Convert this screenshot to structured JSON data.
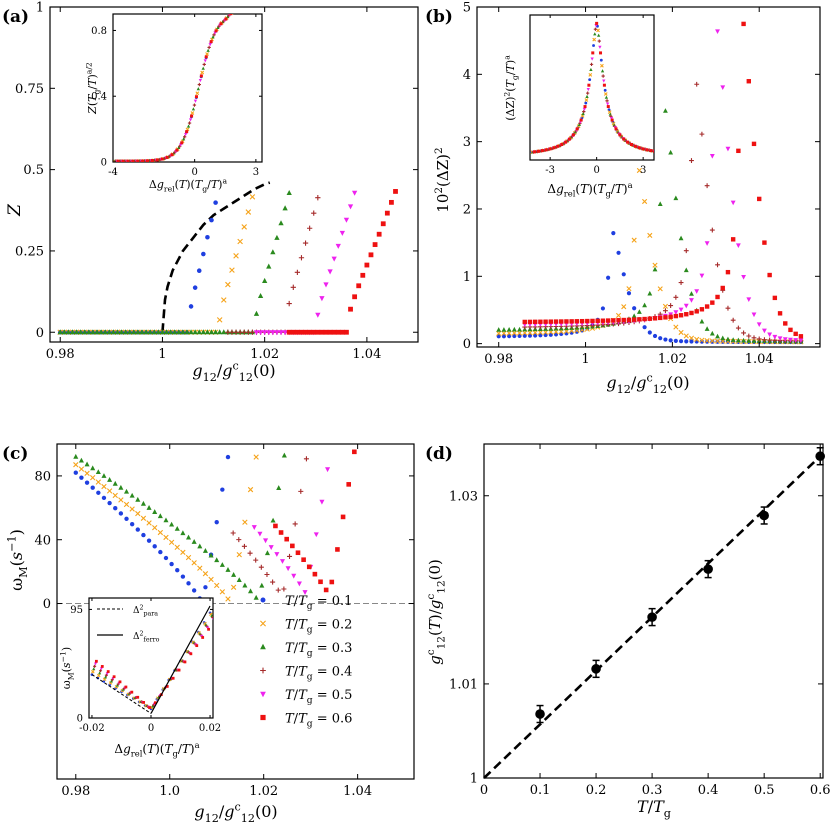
{
  "figure": {
    "panels": [
      {
        "id": "a",
        "tag": "(a)"
      },
      {
        "id": "b",
        "tag": "(b)"
      },
      {
        "id": "c",
        "tag": "(c)"
      },
      {
        "id": "d",
        "tag": "(d)"
      }
    ]
  },
  "chart_data": [
    {
      "panel": "a",
      "type": "scatter",
      "xlabel": "g12/g12^c(0)",
      "ylabel": "Z",
      "xlim": [
        0.978,
        1.05
      ],
      "ylim": [
        -0.03,
        1.0
      ],
      "xticks": [
        0.98,
        1.0,
        1.02,
        1.04
      ],
      "xticklabels": [
        "0.98",
        "1",
        "1.02",
        "1.04"
      ],
      "yticks": [
        0,
        0.25,
        0.5,
        0.75,
        1
      ],
      "yticklabels": [
        "0",
        "0.25",
        "0.5",
        "0.75",
        "1"
      ],
      "mean_field_curve": {
        "style": "dashed",
        "x": [
          1.0,
          1.0005,
          1.001,
          1.002,
          1.004,
          1.006,
          1.008,
          1.01,
          1.012,
          1.014,
          1.016,
          1.018,
          1.02,
          1.021
        ],
        "y": [
          0.0,
          0.1,
          0.14,
          0.19,
          0.25,
          0.29,
          0.33,
          0.36,
          0.38,
          0.4,
          0.42,
          0.44,
          0.455,
          0.46
        ]
      },
      "series": [
        {
          "name": "T/Tg = 0.1",
          "marker": "circle",
          "color": "#1f3fe0",
          "onset": 1.005,
          "x_end": 1.011,
          "y_end": 0.44
        },
        {
          "name": "T/Tg = 0.2",
          "marker": "x",
          "color": "#f5a31a",
          "onset": 1.011,
          "x_end": 1.018,
          "y_end": 0.44
        },
        {
          "name": "T/Tg = 0.3",
          "marker": "triangle",
          "color": "#2a8a1e",
          "onset": 1.018,
          "x_end": 1.025,
          "y_end": 0.44
        },
        {
          "name": "T/Tg = 0.4",
          "marker": "plus",
          "color": "#a52a2a",
          "onset": 1.024,
          "x_end": 1.031,
          "y_end": 0.45
        },
        {
          "name": "T/Tg = 0.5",
          "marker": "triangle-down",
          "color": "#ee22ee",
          "onset": 1.03,
          "x_end": 1.038,
          "y_end": 0.45
        },
        {
          "name": "T/Tg = 0.6",
          "marker": "square",
          "color": "#ee1111",
          "onset": 1.036,
          "x_end": 1.046,
          "y_end": 0.45
        }
      ],
      "inset": {
        "xlabel": "Δg_rel(T)(Tg/T)^a",
        "ylabel": "Z(Tg/T)^(a/2)",
        "xlim": [
          -4,
          3.3
        ],
        "ylim": [
          0,
          0.9
        ],
        "xticks": [
          -4,
          0,
          3
        ],
        "xticklabels": [
          "-4",
          "0",
          "3"
        ],
        "yticks": [
          0,
          0.4,
          0.8
        ],
        "yticklabels": [
          "0",
          "0.4",
          "0.8"
        ]
      }
    },
    {
      "panel": "b",
      "type": "scatter",
      "xlabel": "g12/g12^c(0)",
      "ylabel": "10^2(ΔZ)^2",
      "xlim": [
        0.975,
        1.054
      ],
      "ylim": [
        -0.05,
        5.0
      ],
      "xticks": [
        0.98,
        1.0,
        1.02,
        1.04
      ],
      "xticklabels": [
        "0.98",
        "1",
        "1.02",
        "1.04"
      ],
      "yticks": [
        0,
        1,
        2,
        3,
        4,
        5
      ],
      "yticklabels": [
        "0",
        "1",
        "2",
        "3",
        "4",
        "5"
      ],
      "series": [
        {
          "name": "T/Tg = 0.1",
          "peak_x": 1.006,
          "peak_y": 1.65,
          "base": 0.09
        },
        {
          "name": "T/Tg = 0.2",
          "peak_x": 1.012,
          "peak_y": 2.6,
          "base": 0.13
        },
        {
          "name": "T/Tg = 0.3",
          "peak_x": 1.018,
          "peak_y": 3.5,
          "base": 0.18
        },
        {
          "name": "T/Tg = 0.4",
          "peak_x": 1.025,
          "peak_y": 4.0,
          "base": 0.22
        },
        {
          "name": "T/Tg = 0.5",
          "peak_x": 1.03,
          "peak_y": 4.7,
          "base": 0.26
        },
        {
          "name": "T/Tg = 0.6",
          "peak_x": 1.036,
          "peak_y": 4.8,
          "base": 0.3
        }
      ],
      "inset": {
        "xlabel": "Δg_rel(T)(Tg/T)^a",
        "ylabel": "(ΔZ)^2(Tg/T)^a",
        "xlim": [
          -4.3,
          3.7
        ],
        "ylim": [
          0,
          5.2
        ],
        "xticks": [
          -3,
          0,
          3
        ],
        "xticklabels": [
          "-3",
          "0",
          "3"
        ]
      }
    },
    {
      "panel": "c",
      "type": "scatter",
      "xlabel": "g12/g12^c(0)",
      "ylabel": "ωM(s^-1)",
      "xlim": [
        0.976,
        1.052
      ],
      "ylim": [
        -110,
        100
      ],
      "xticks": [
        0.98,
        1.0,
        1.02,
        1.04
      ],
      "xticklabels": [
        "0.98",
        "1.0",
        "1.02",
        "1.04"
      ],
      "yticks": [
        0,
        40,
        80
      ],
      "yticklabels": [
        "0",
        "40",
        "80"
      ],
      "series": [
        {
          "name": "T/Tg = 0.1",
          "min_x": 1.007,
          "min_y": 0,
          "start_y": 82
        },
        {
          "name": "T/Tg = 0.2",
          "min_x": 1.013,
          "min_y": 0,
          "start_y": 87
        },
        {
          "name": "T/Tg = 0.3",
          "min_x": 1.019,
          "min_y": 1,
          "start_y": 92
        },
        {
          "name": "T/Tg = 0.4",
          "min_x": 1.024,
          "min_y": 4,
          "start_y": null
        },
        {
          "name": "T/Tg = 0.5",
          "min_x": 1.029,
          "min_y": 6,
          "start_y": null
        },
        {
          "name": "T/Tg = 0.6",
          "min_x": 1.034,
          "min_y": 5,
          "start_y": null
        }
      ],
      "legend": [
        "T/Tg = 0.1",
        "T/Tg = 0.2",
        "T/Tg = 0.3",
        "T/Tg = 0.4",
        "T/Tg = 0.5",
        "T/Tg = 0.6"
      ],
      "inset": {
        "xlabel": "Δg_rel(T)(Tg/T)^a",
        "ylabel": "ωM(s^-1)",
        "xlim": [
          -0.021,
          0.021
        ],
        "ylim": [
          0,
          105
        ],
        "xticks": [
          -0.02,
          0,
          0.02
        ],
        "xticklabels": [
          "-0.02",
          "0",
          "0.02"
        ],
        "yticks": [
          0,
          95
        ],
        "yticklabels": [
          "0",
          "95"
        ],
        "legend": [
          "Δ²para",
          "Δ²ferro"
        ]
      }
    },
    {
      "panel": "d",
      "type": "scatter",
      "xlabel": "T/Tg",
      "ylabel": "g12^c(T)/g12^c(0)",
      "xlim": [
        0,
        0.605
      ],
      "ylim": [
        1.0,
        1.0355
      ],
      "xticks": [
        0,
        0.1,
        0.2,
        0.3,
        0.4,
        0.5,
        0.6
      ],
      "xticklabels": [
        "0",
        "0.1",
        "0.2",
        "0.3",
        "0.4",
        "0.5",
        "0.6"
      ],
      "yticks": [
        1.0,
        1.01,
        1.03
      ],
      "yticklabels": [
        "1",
        "1.01",
        "1.03"
      ],
      "x": [
        0.1,
        0.2,
        0.3,
        0.4,
        0.5,
        0.6
      ],
      "y": [
        1.0068,
        1.0116,
        1.0171,
        1.0222,
        1.0279,
        1.0342
      ],
      "yerr": [
        0.0009,
        0.0009,
        0.0009,
        0.0009,
        0.0009,
        0.0009
      ],
      "fit_line": {
        "style": "dashed",
        "x": [
          0,
          0.6
        ],
        "y": [
          1.0,
          1.0342
        ]
      }
    }
  ]
}
